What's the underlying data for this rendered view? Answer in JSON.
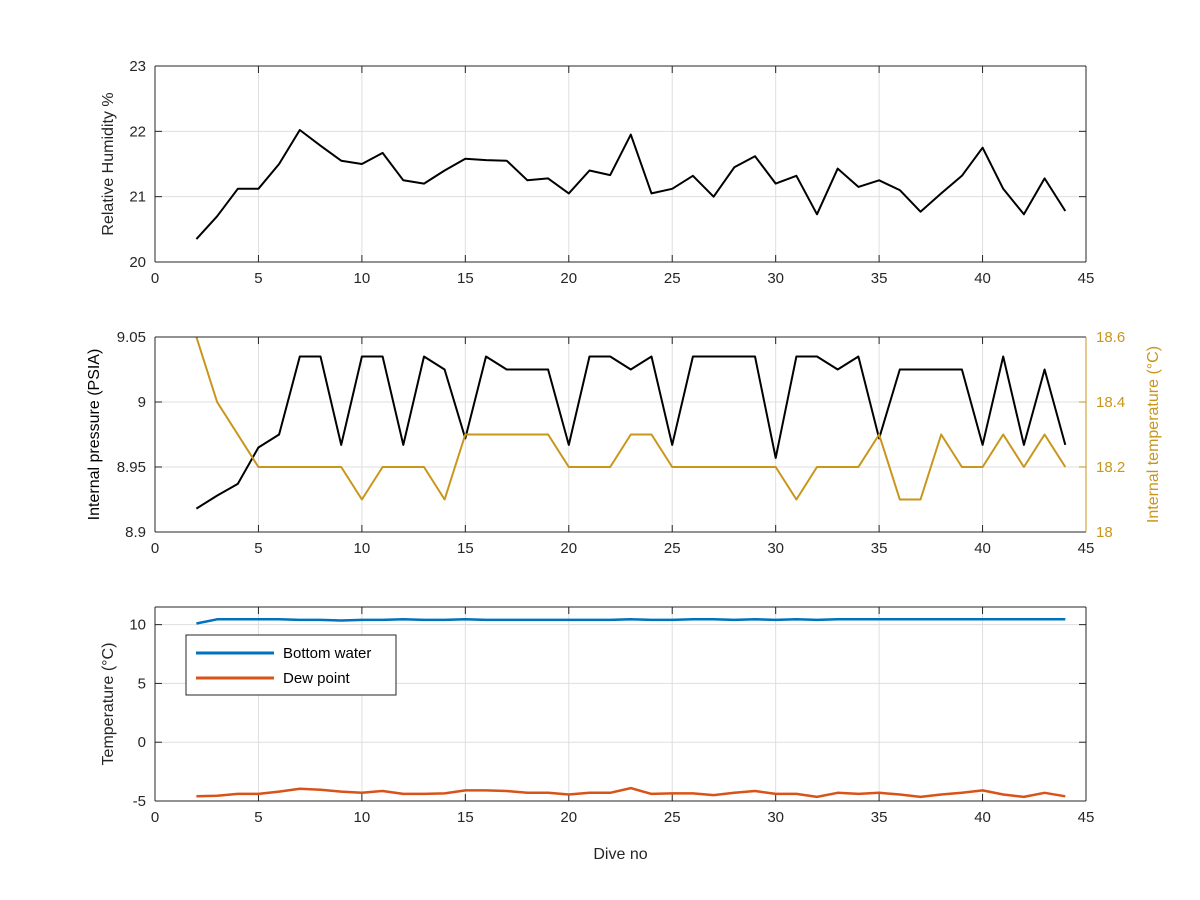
{
  "chart_data": [
    {
      "type": "line",
      "xlabel": "",
      "ylabel": "Relative Humidity %",
      "xlim": [
        0,
        45
      ],
      "ylim": [
        20,
        23
      ],
      "xticks": [
        "0",
        "5",
        "10",
        "15",
        "20",
        "25",
        "30",
        "35",
        "40",
        "45"
      ],
      "yticks": [
        "20",
        "21",
        "22",
        "23"
      ],
      "grid": true,
      "series": [
        {
          "color": "#000000",
          "x": [
            2,
            3,
            4,
            5,
            6,
            7,
            8,
            9,
            10,
            11,
            12,
            13,
            14,
            15,
            16,
            17,
            18,
            19,
            20,
            21,
            22,
            23,
            24,
            25,
            26,
            27,
            28,
            29,
            30,
            31,
            32,
            33,
            34,
            35,
            36,
            37,
            38,
            39,
            40,
            41,
            42,
            43,
            44
          ],
          "values": [
            20.35,
            20.7,
            21.12,
            21.12,
            21.5,
            22.02,
            21.78,
            21.55,
            21.5,
            21.67,
            21.25,
            21.2,
            21.4,
            21.58,
            21.56,
            21.55,
            21.25,
            21.28,
            21.05,
            21.4,
            21.33,
            21.95,
            21.05,
            21.12,
            21.32,
            21.0,
            21.45,
            21.62,
            21.2,
            21.32,
            20.73,
            21.43,
            21.15,
            21.25,
            21.1,
            20.77,
            21.05,
            21.32,
            21.75,
            21.12,
            20.73,
            21.28,
            20.78
          ]
        }
      ]
    },
    {
      "type": "line",
      "xlabel": "",
      "ylabel": "Internal pressure (PSIA)",
      "y2label": "Internal temperature (°C)",
      "xlim": [
        0,
        45
      ],
      "ylim": [
        8.9,
        9.05
      ],
      "y2lim": [
        18,
        18.6
      ],
      "xticks": [
        "0",
        "5",
        "10",
        "15",
        "20",
        "25",
        "30",
        "35",
        "40",
        "45"
      ],
      "yticks": [
        "8.9",
        "8.95",
        "9",
        "9.05"
      ],
      "y2ticks": [
        "18",
        "18.2",
        "18.4",
        "18.6"
      ],
      "y2color": "#c8961a",
      "grid": true,
      "series": [
        {
          "axis": "left",
          "color": "#000000",
          "x": [
            2,
            3,
            4,
            5,
            6,
            7,
            8,
            9,
            10,
            11,
            12,
            13,
            14,
            15,
            16,
            17,
            18,
            19,
            20,
            21,
            22,
            23,
            24,
            25,
            26,
            27,
            28,
            29,
            30,
            31,
            32,
            33,
            34,
            35,
            36,
            37,
            38,
            39,
            40,
            41,
            42,
            43,
            44
          ],
          "values": [
            8.918,
            8.928,
            8.937,
            8.965,
            8.975,
            9.035,
            9.035,
            8.967,
            9.035,
            9.035,
            8.967,
            9.035,
            9.025,
            8.972,
            9.035,
            9.025,
            9.025,
            9.025,
            8.967,
            9.035,
            9.035,
            9.025,
            9.035,
            8.967,
            9.035,
            9.035,
            9.035,
            9.035,
            8.957,
            9.035,
            9.035,
            9.025,
            9.035,
            8.972,
            9.025,
            9.025,
            9.025,
            9.025,
            8.967,
            9.035,
            8.967,
            9.025,
            8.967
          ]
        },
        {
          "axis": "right",
          "color": "#c8961a",
          "x": [
            2,
            3,
            4,
            5,
            6,
            7,
            8,
            9,
            10,
            11,
            12,
            13,
            14,
            15,
            16,
            17,
            18,
            19,
            20,
            21,
            22,
            23,
            24,
            25,
            26,
            27,
            28,
            29,
            30,
            31,
            32,
            33,
            34,
            35,
            36,
            37,
            38,
            39,
            40,
            41,
            42,
            43,
            44
          ],
          "values": [
            18.6,
            18.4,
            18.3,
            18.2,
            18.2,
            18.2,
            18.2,
            18.2,
            18.1,
            18.2,
            18.2,
            18.2,
            18.1,
            18.3,
            18.3,
            18.3,
            18.3,
            18.3,
            18.2,
            18.2,
            18.2,
            18.3,
            18.3,
            18.2,
            18.2,
            18.2,
            18.2,
            18.2,
            18.2,
            18.1,
            18.2,
            18.2,
            18.2,
            18.3,
            18.1,
            18.1,
            18.3,
            18.2,
            18.2,
            18.3,
            18.2,
            18.3,
            18.2
          ]
        }
      ]
    },
    {
      "type": "line",
      "xlabel": "Dive no",
      "ylabel": "Temperature (°C)",
      "xlim": [
        0,
        45
      ],
      "ylim": [
        -5,
        11.5
      ],
      "xticks": [
        "0",
        "5",
        "10",
        "15",
        "20",
        "25",
        "30",
        "35",
        "40",
        "45"
      ],
      "yticks": [
        "-5",
        "0",
        "5",
        "10"
      ],
      "grid": true,
      "legend": "top-left",
      "series": [
        {
          "name": "Bottom water",
          "color": "#0072bd",
          "x": [
            2,
            3,
            4,
            5,
            6,
            7,
            8,
            9,
            10,
            11,
            12,
            13,
            14,
            15,
            16,
            17,
            18,
            19,
            20,
            21,
            22,
            23,
            24,
            25,
            26,
            27,
            28,
            29,
            30,
            31,
            32,
            33,
            34,
            35,
            36,
            37,
            38,
            39,
            40,
            41,
            42,
            43,
            44
          ],
          "values": [
            10.1,
            10.45,
            10.45,
            10.45,
            10.45,
            10.4,
            10.4,
            10.35,
            10.4,
            10.4,
            10.45,
            10.4,
            10.4,
            10.45,
            10.4,
            10.4,
            10.4,
            10.4,
            10.4,
            10.4,
            10.4,
            10.45,
            10.4,
            10.4,
            10.45,
            10.45,
            10.4,
            10.45,
            10.4,
            10.45,
            10.4,
            10.45,
            10.45,
            10.45,
            10.45,
            10.45,
            10.45,
            10.45,
            10.45,
            10.45,
            10.45,
            10.45,
            10.45
          ]
        },
        {
          "name": "Dew point",
          "color": "#d95319",
          "x": [
            2,
            3,
            4,
            5,
            6,
            7,
            8,
            9,
            10,
            11,
            12,
            13,
            14,
            15,
            16,
            17,
            18,
            19,
            20,
            21,
            22,
            23,
            24,
            25,
            26,
            27,
            28,
            29,
            30,
            31,
            32,
            33,
            34,
            35,
            36,
            37,
            38,
            39,
            40,
            41,
            42,
            43,
            44
          ],
          "values": [
            -4.6,
            -4.55,
            -4.4,
            -4.4,
            -4.2,
            -3.95,
            -4.05,
            -4.2,
            -4.3,
            -4.15,
            -4.4,
            -4.4,
            -4.35,
            -4.1,
            -4.1,
            -4.15,
            -4.3,
            -4.3,
            -4.45,
            -4.3,
            -4.3,
            -3.9,
            -4.4,
            -4.35,
            -4.35,
            -4.5,
            -4.3,
            -4.15,
            -4.4,
            -4.4,
            -4.65,
            -4.3,
            -4.4,
            -4.3,
            -4.45,
            -4.65,
            -4.45,
            -4.3,
            -4.1,
            -4.45,
            -4.65,
            -4.3,
            -4.6
          ]
        }
      ]
    }
  ]
}
